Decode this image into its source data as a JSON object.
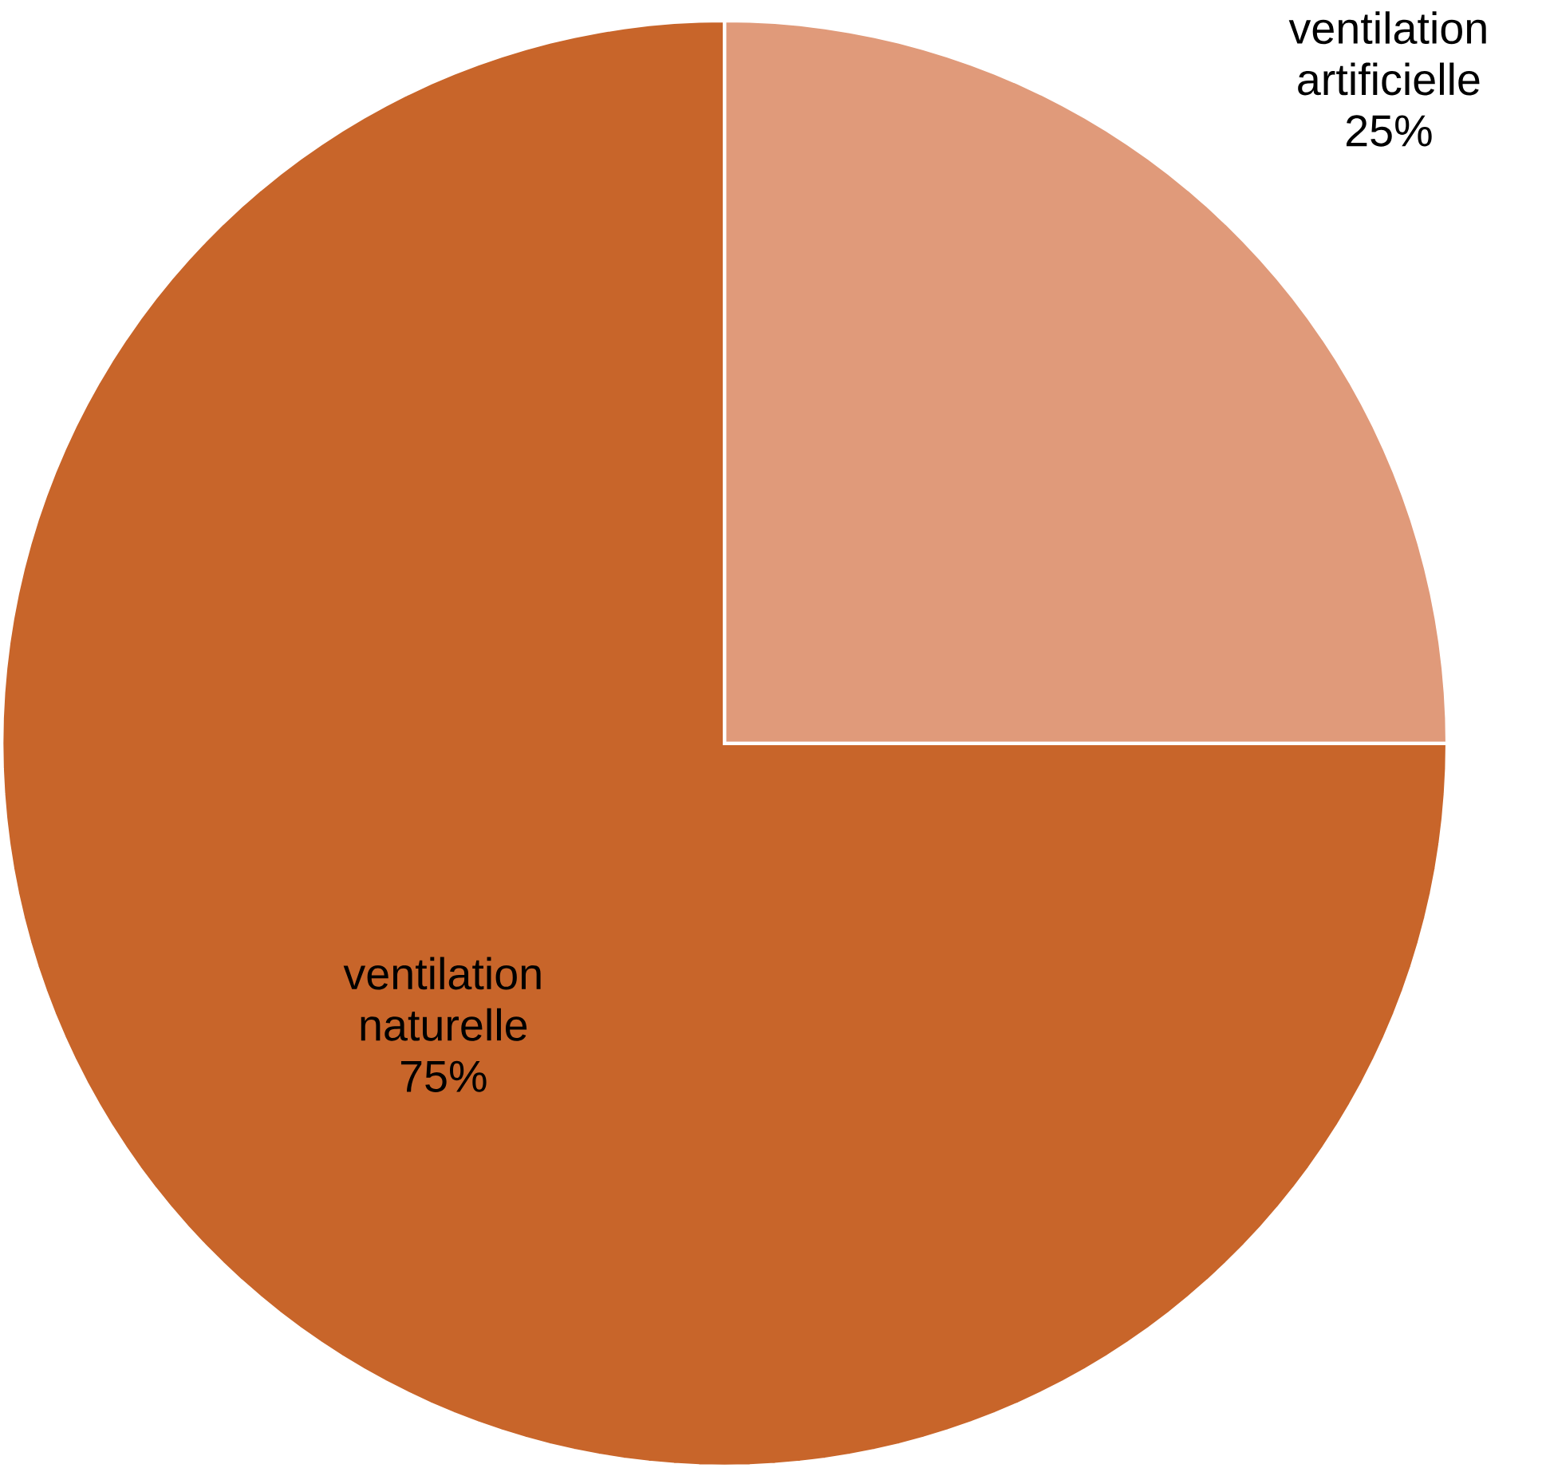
{
  "chart_data": {
    "type": "pie",
    "categories": [
      "ventilation artificielle",
      "ventilation naturelle"
    ],
    "values": [
      25,
      75
    ],
    "colors": [
      "#e09a7a",
      "#c8652a"
    ],
    "value_labels": [
      "25%",
      "75%"
    ]
  }
}
